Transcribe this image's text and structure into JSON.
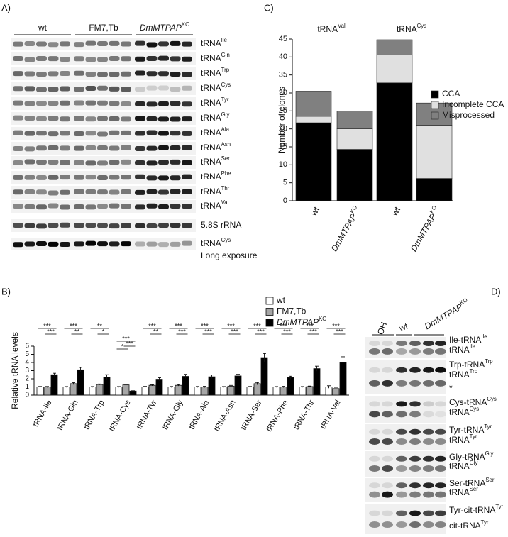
{
  "panel_a": {
    "label": "A)",
    "groups": [
      {
        "text": "wt"
      },
      {
        "text": "FM7,Tb"
      },
      {
        "text": "DmMTPAP",
        "sup": "KO"
      }
    ],
    "rows": [
      {
        "text": "tRNA",
        "sup": "Ile"
      },
      {
        "text": "tRNA",
        "sup": "Gln"
      },
      {
        "text": "tRNA",
        "sup": "Trp"
      },
      {
        "text": "tRNA",
        "sup": "Cys"
      },
      {
        "text": "tRNA",
        "sup": "Tyr"
      },
      {
        "text": "tRNA",
        "sup": "Gly"
      },
      {
        "text": "tRNA",
        "sup": "Ala"
      },
      {
        "text": "tRNA",
        "sup": "Asn"
      },
      {
        "text": "tRNA",
        "sup": "Ser"
      },
      {
        "text": "tRNA",
        "sup": "Phe"
      },
      {
        "text": "tRNA",
        "sup": "Thr"
      },
      {
        "text": "tRNA",
        "sup": "Val"
      },
      {
        "text": "5.8S rRNA"
      },
      {
        "text": "tRNA",
        "sup": "Cys"
      }
    ],
    "note": "Long exposure"
  },
  "panel_d": {
    "label": "D)",
    "groups": [
      {
        "text": "OH",
        "sup": "-"
      },
      {
        "text": "wt"
      },
      {
        "text": "DmMTPAP",
        "sup": "KO"
      }
    ],
    "labels": [
      {
        "text": "Ile-tRNA",
        "sup": "Ile"
      },
      {
        "text": "tRNA",
        "sup": "Ile"
      },
      {
        "text": "Trp-tRNA",
        "sup": "Trp"
      },
      {
        "text": "tRNA",
        "sup": "Trp"
      },
      {
        "text": "*"
      },
      {
        "text": "Cys-tRNA",
        "sup": "Cys"
      },
      {
        "text": "tRNA",
        "sup": "Cys"
      },
      {
        "text": "Tyr-tRNA",
        "sup": "Tyr"
      },
      {
        "text": "tRNA",
        "sup": "Tyr"
      },
      {
        "text": "Gly-tRNA",
        "sup": "Gly"
      },
      {
        "text": "tRNA",
        "sup": "Gly"
      },
      {
        "text": "Ser-tRNA",
        "sup": "Ser"
      },
      {
        "text": "tRNA",
        "sup": "Ser"
      },
      {
        "text": "Tyr-cit-tRNA",
        "sup": "Tyr"
      },
      {
        "text": "cit-tRNA",
        "sup": "Tyr"
      }
    ]
  },
  "chart_data": [
    {
      "type": "bar",
      "label": "B)",
      "ylabel": "Relative tRNA levels",
      "categories": [
        "tRNA-Ile",
        "tRNA-Gln",
        "tRNA-Trp",
        "tRNA-Cys",
        "tRNA-Tyr",
        "tRNA-Gly",
        "tRNA-Ala",
        "tRNA-Asn",
        "tRNA-Ser",
        "tRNA-Phe",
        "tRNA-Thr",
        "tRNA-Val"
      ],
      "series": [
        {
          "name": "wt",
          "color": "#ffffff",
          "values": [
            1.0,
            1.0,
            1.0,
            1.0,
            1.0,
            1.0,
            1.0,
            1.0,
            1.0,
            1.0,
            1.0,
            1.0
          ],
          "errors": [
            0.06,
            0.05,
            0.05,
            0.05,
            0.07,
            0.06,
            0.06,
            0.05,
            0.06,
            0.05,
            0.05,
            0.15
          ]
        },
        {
          "name": "FM7,Tb",
          "color": "#a6a6a6",
          "values": [
            1.0,
            1.4,
            1.3,
            1.25,
            1.2,
            1.2,
            1.0,
            1.1,
            1.4,
            1.0,
            1.05,
            0.8
          ],
          "errors": [
            0.06,
            0.12,
            0.06,
            0.08,
            0.07,
            0.08,
            0.08,
            0.09,
            0.14,
            0.08,
            0.06,
            0.15
          ]
        },
        {
          "name": "DmMTPAP",
          "name_sup": "KO",
          "color": "#000000",
          "values": [
            2.5,
            3.1,
            2.2,
            0.5,
            1.95,
            2.3,
            2.25,
            2.35,
            4.6,
            2.15,
            3.25,
            4.0
          ],
          "errors": [
            0.18,
            0.3,
            0.3,
            0.04,
            0.18,
            0.25,
            0.22,
            0.2,
            0.5,
            0.17,
            0.3,
            0.7
          ]
        }
      ],
      "significance": [
        [
          "***",
          "***"
        ],
        [
          "***",
          "**"
        ],
        [
          "**",
          "*"
        ],
        [
          "***",
          "*",
          "***"
        ],
        [
          "***",
          "**"
        ],
        [
          "***",
          "***"
        ],
        [
          "***",
          "***"
        ],
        [
          "***",
          "***"
        ],
        [
          "***",
          "***"
        ],
        [
          "***",
          "***"
        ],
        [
          "***",
          "***"
        ],
        [
          "***",
          "***"
        ]
      ],
      "ylim": [
        0,
        6
      ],
      "yticks": [
        0,
        1,
        2,
        3,
        4,
        5,
        6
      ],
      "legend": "top-right"
    },
    {
      "type": "stacked-bar",
      "label": "C)",
      "ylabel": "Number of clones",
      "groups": [
        {
          "text": "tRNA",
          "sup": "Val"
        },
        {
          "text": "tRNA",
          "sup": "Cys"
        }
      ],
      "categories": [
        {
          "text": "wt"
        },
        {
          "text": "DmMTPAP",
          "sup": "KO"
        },
        {
          "text": "wt"
        },
        {
          "text": "DmMTPAP",
          "sup": "KO"
        }
      ],
      "series": [
        {
          "name": "CCA",
          "color": "#000000",
          "values": [
            21.7,
            14.3,
            32.8,
            6.2
          ]
        },
        {
          "name": "Incomplete CCA",
          "color": "#e0e0e0",
          "values": [
            1.8,
            5.7,
            7.8,
            14.8
          ]
        },
        {
          "name": "Misprocessed",
          "color": "#808080",
          "values": [
            7,
            5,
            4.2,
            6.2
          ]
        }
      ],
      "ylim": [
        0,
        45
      ],
      "yticks": [
        0,
        5,
        10,
        15,
        20,
        25,
        30,
        35,
        40,
        45
      ],
      "legend": "right"
    }
  ]
}
